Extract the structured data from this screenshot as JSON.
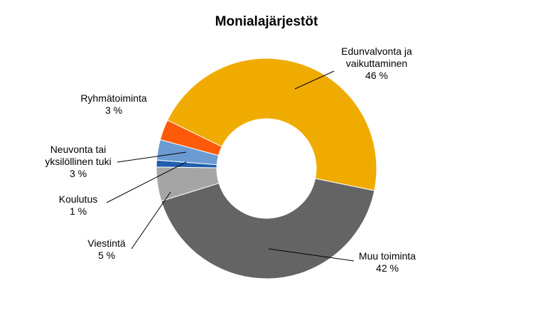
{
  "chart_data": {
    "type": "donut",
    "title": "Monialajärjestöt",
    "categories": [
      "Edunvalvonta ja vaikuttaminen",
      "Muu toiminta",
      "Viestintä",
      "Koulutus",
      "Neuvonta tai yksilöllinen tuki",
      "Ryhmätoiminta"
    ],
    "values": [
      46,
      42,
      5,
      1,
      3,
      3
    ],
    "value_labels": [
      "46 %",
      "42 %",
      "5 %",
      "1 %",
      "3 %",
      "3 %"
    ],
    "colors": [
      "#f0ab00",
      "#646464",
      "#a5a5a5",
      "#1f5fad",
      "#6c9bd2",
      "#ff5a0a"
    ]
  }
}
